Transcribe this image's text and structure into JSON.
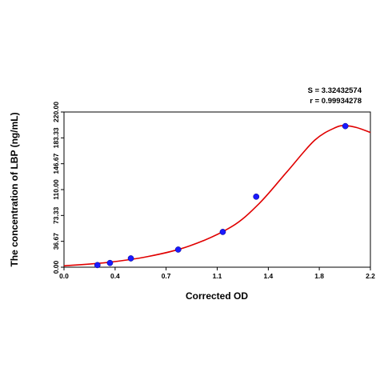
{
  "chart_data": {
    "type": "scatter",
    "title": "",
    "xlabel": "Corrected OD",
    "ylabel": "The concentration of LBP (ng/mL)",
    "xlim": [
      0.0,
      2.2
    ],
    "ylim": [
      0.0,
      220.0
    ],
    "x_ticks": [
      "0.0",
      "0.4",
      "0.7",
      "1.1",
      "1.4",
      "1.8",
      "2.2"
    ],
    "x_tick_values": [
      0.0,
      0.367,
      0.733,
      1.1,
      1.467,
      1.833,
      2.2
    ],
    "y_ticks": [
      "0.00",
      "36.67",
      "73.33",
      "110.00",
      "146.67",
      "183.33",
      "220.00"
    ],
    "y_tick_values": [
      0.0,
      36.67,
      73.33,
      110.0,
      146.67,
      183.33,
      220.0
    ],
    "grid": false,
    "stats": {
      "s": "S = 3.32432574",
      "r": "r = 0.99934278"
    },
    "series": [
      {
        "kind": "points",
        "color": "#1a1aff",
        "x": [
          0.24,
          0.33,
          0.48,
          0.82,
          1.14,
          1.38,
          2.02
        ],
        "y": [
          3.0,
          6.0,
          12.5,
          25.0,
          50.0,
          100.0,
          200.0
        ]
      },
      {
        "kind": "fit-curve",
        "color": "#e00000",
        "x": [
          0.0,
          0.3,
          0.6,
          0.9,
          1.2,
          1.4,
          1.6,
          1.8,
          1.95,
          2.02,
          2.1,
          2.2
        ],
        "y": [
          2.0,
          6.5,
          15.0,
          30.0,
          57.0,
          90.0,
          135.0,
          180.0,
          198.0,
          200.5,
          198.0,
          191.0
        ]
      }
    ]
  }
}
